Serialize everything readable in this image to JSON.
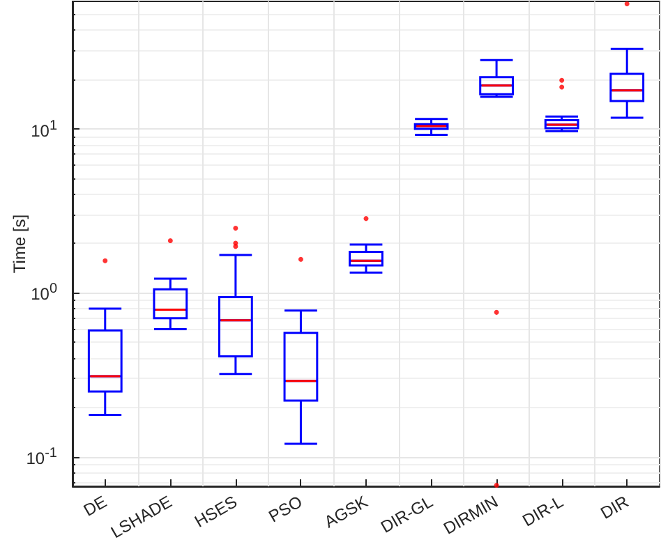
{
  "chart_data": {
    "type": "box",
    "ylabel": "Time [s]",
    "categories": [
      "DE",
      "LSHADE",
      "HSES",
      "PSO",
      "AGSK",
      "DIR-GL",
      "DIRMIN",
      "DIR-L",
      "DIR"
    ],
    "log": "y",
    "ylim": [
      0.066,
      60
    ],
    "yticks": [
      {
        "value": 0.1,
        "label": "10$^{-1}$"
      },
      {
        "value": 1,
        "label": "10$^{0}$"
      },
      {
        "value": 10,
        "label": "10$^{1}$"
      }
    ],
    "grid": true,
    "series": [
      {
        "type": "box",
        "color": "#0000ff",
        "boxes": [
          {
            "low": 0.18,
            "q1": 0.25,
            "median": 0.31,
            "q3": 0.59,
            "high": 0.8
          },
          {
            "low": 0.6,
            "q1": 0.7,
            "median": 0.79,
            "q3": 1.05,
            "high": 1.22
          },
          {
            "low": 0.32,
            "q1": 0.41,
            "median": 0.68,
            "q3": 0.94,
            "high": 1.7
          },
          {
            "low": 0.12,
            "q1": 0.22,
            "median": 0.29,
            "q3": 0.57,
            "high": 0.78
          },
          {
            "low": 1.33,
            "q1": 1.47,
            "median": 1.57,
            "q3": 1.78,
            "high": 1.97
          },
          {
            "low": 9.2,
            "q1": 10.0,
            "median": 10.4,
            "q3": 10.7,
            "high": 11.5
          },
          {
            "low": 15.7,
            "q1": 16.3,
            "median": 18.4,
            "q3": 20.7,
            "high": 26.3
          },
          {
            "low": 9.7,
            "q1": 10.1,
            "median": 10.6,
            "q3": 11.3,
            "high": 11.9
          },
          {
            "low": 11.7,
            "q1": 14.8,
            "median": 17.2,
            "q3": 21.7,
            "high": 30.8
          }
        ]
      },
      {
        "type": "scatter",
        "color": "#ff0000",
        "marker": "circle",
        "x": [
          "DE",
          "LSHADE",
          "HSES",
          "HSES",
          "HSES",
          "PSO",
          "AGSK",
          "DIRMIN",
          "DIRMIN",
          "DIR-L",
          "DIR-L",
          "DIR"
        ],
        "values": [
          1.57,
          2.08,
          2.48,
          2.01,
          1.92,
          1.6,
          2.84,
          0.76,
          0.067,
          19.8,
          18.0,
          58
        ]
      }
    ]
  }
}
